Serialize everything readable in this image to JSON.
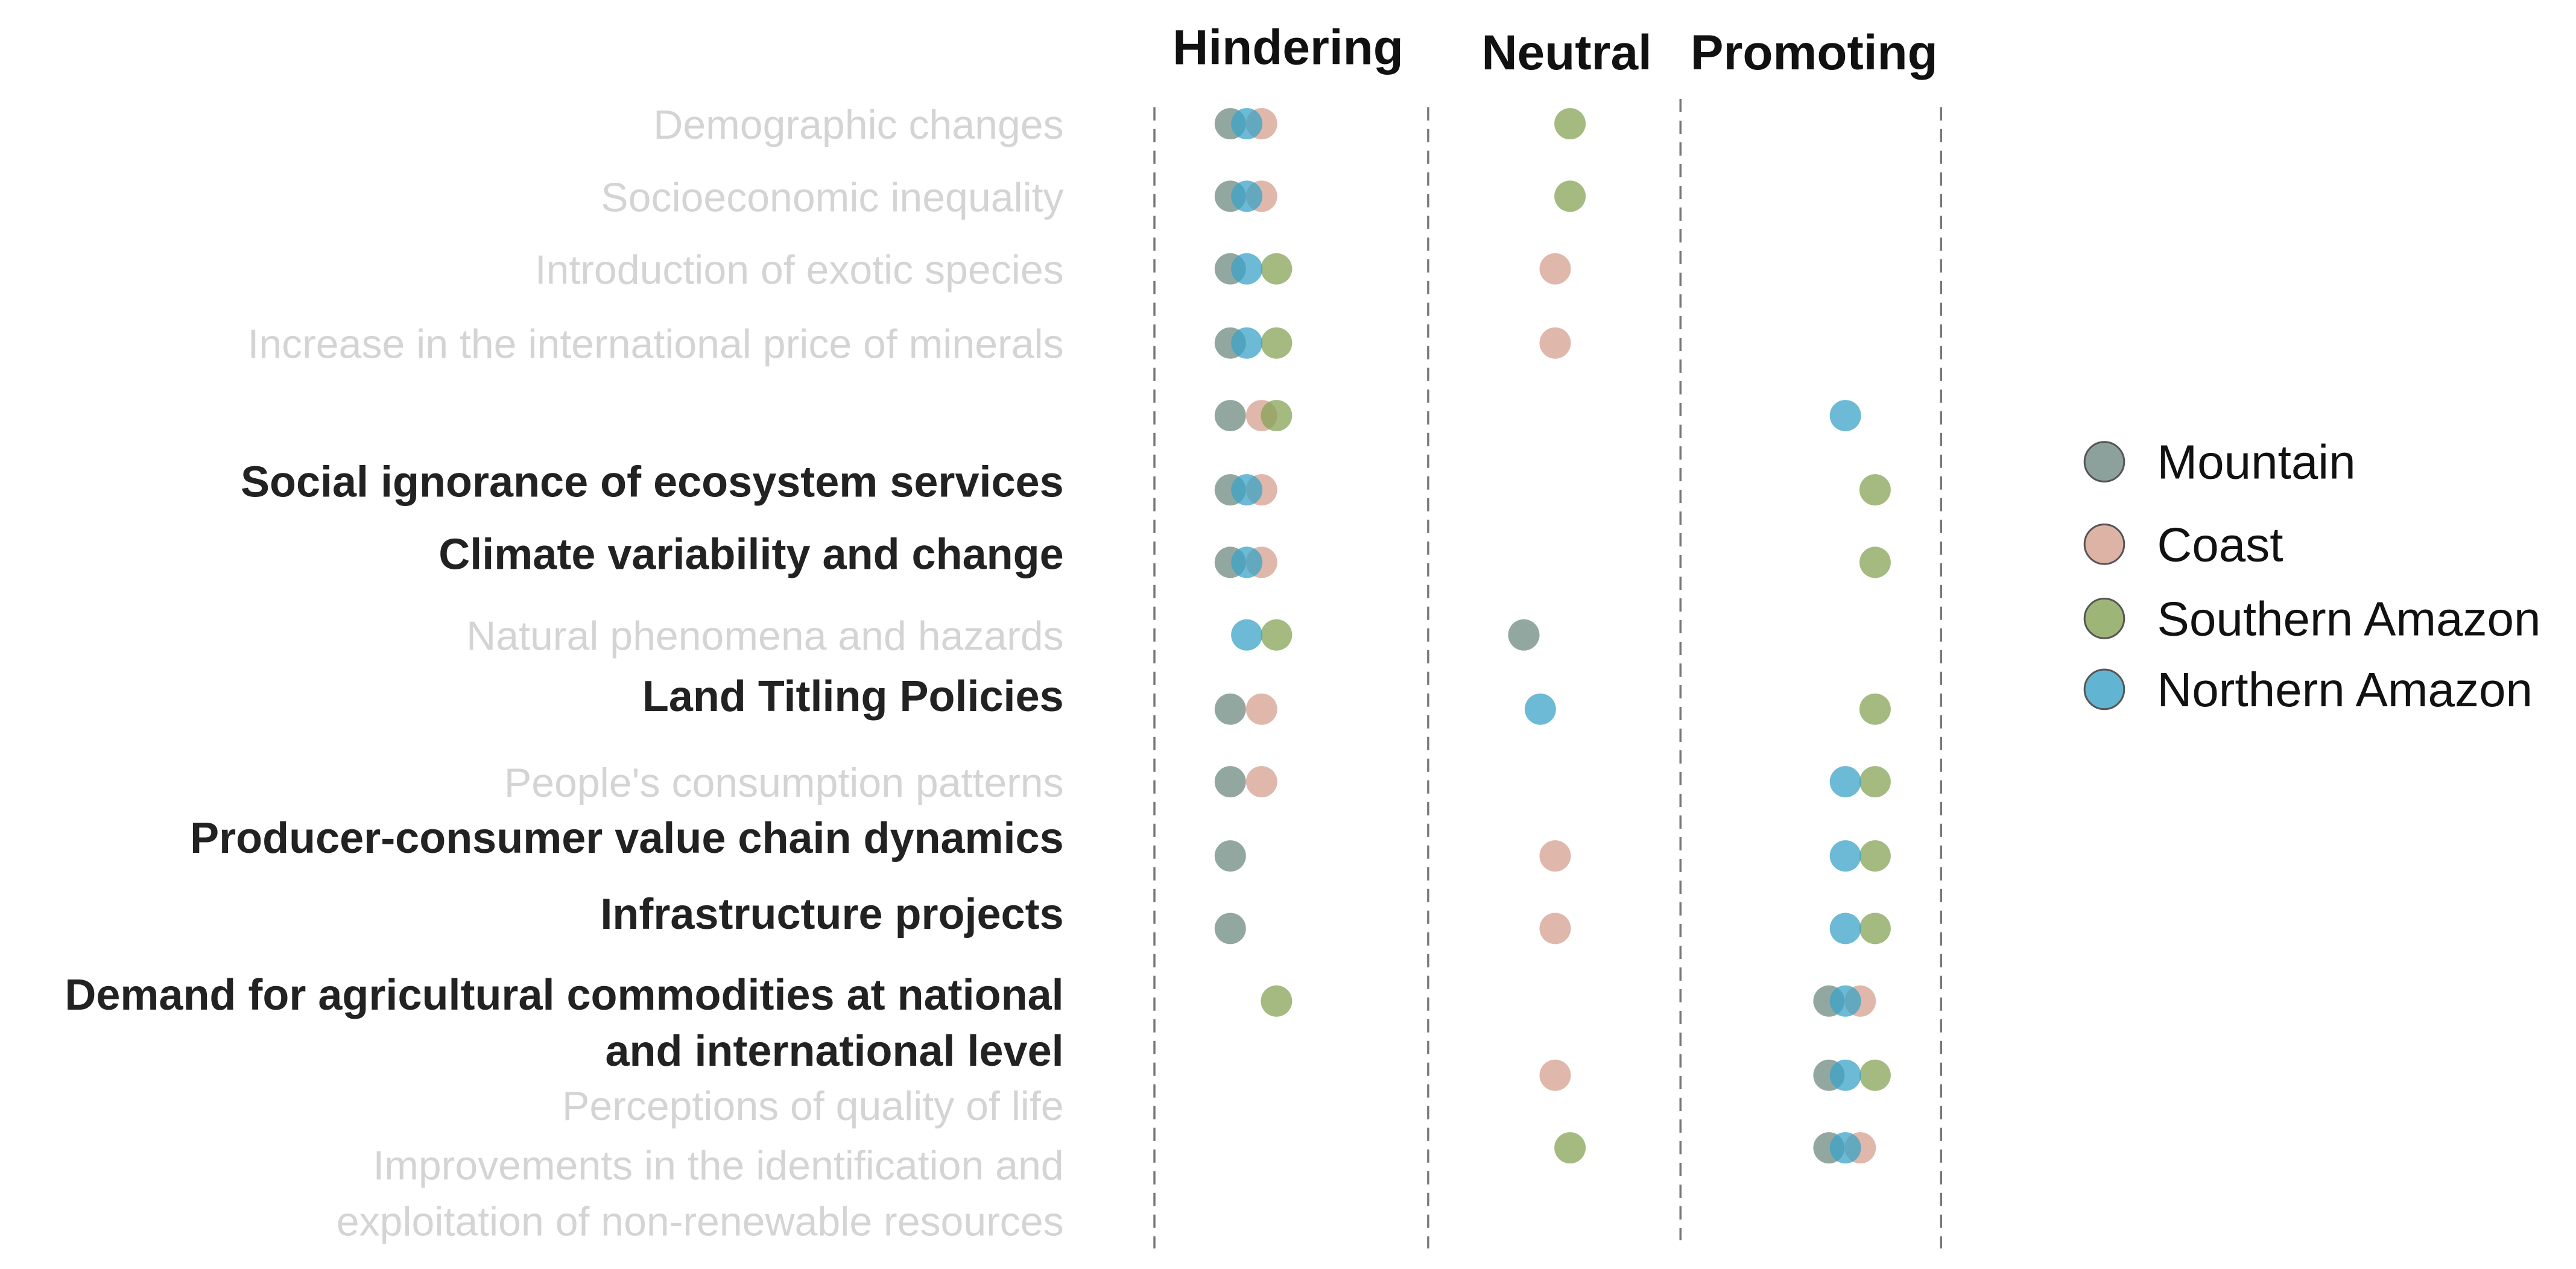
{
  "chart_data": {
    "type": "scatter",
    "columns": [
      "Hindering",
      "Neutral",
      "Promoting"
    ],
    "categories": [
      {
        "label": "Demographic changes",
        "emphasis": false
      },
      {
        "label": "Socioeconomic inequality",
        "emphasis": false
      },
      {
        "label": "Introduction of exotic species",
        "emphasis": false
      },
      {
        "label": "Increase in the international price of minerals",
        "emphasis": false
      },
      {
        "label": "",
        "emphasis": false
      },
      {
        "label": "Social ignorance of ecosystem services",
        "emphasis": true
      },
      {
        "label": "Climate variability and change",
        "emphasis": true
      },
      {
        "label": "Natural phenomena and hazards",
        "emphasis": false
      },
      {
        "label": "Land Titling Policies",
        "emphasis": true
      },
      {
        "label": "People's consumption patterns",
        "emphasis": false
      },
      {
        "label": "Producer-consumer value chain dynamics",
        "emphasis": true
      },
      {
        "label": "Infrastructure projects",
        "emphasis": true
      },
      {
        "label": "Demand for agricultural commodities at national and international level",
        "emphasis": true
      },
      {
        "label": "Perceptions of quality of life",
        "emphasis": false
      },
      {
        "label": "Improvements in the identification and exploitation of non-renewable resources",
        "emphasis": false
      }
    ],
    "series": [
      {
        "name": "Mountain",
        "color": "#6f8a82",
        "points": [
          {
            "row": 0,
            "column": "Hindering"
          },
          {
            "row": 1,
            "column": "Hindering"
          },
          {
            "row": 2,
            "column": "Hindering"
          },
          {
            "row": 3,
            "column": "Hindering"
          },
          {
            "row": 4,
            "column": "Hindering"
          },
          {
            "row": 5,
            "column": "Hindering"
          },
          {
            "row": 6,
            "column": "Hindering"
          },
          {
            "row": 7,
            "column": "Neutral"
          },
          {
            "row": 8,
            "column": "Hindering"
          },
          {
            "row": 9,
            "column": "Hindering"
          },
          {
            "row": 10,
            "column": "Hindering"
          },
          {
            "row": 11,
            "column": "Hindering"
          },
          {
            "row": 12,
            "column": "Promoting"
          },
          {
            "row": 13,
            "column": "Promoting"
          },
          {
            "row": 14,
            "column": "Promoting"
          }
        ]
      },
      {
        "name": "Coast",
        "color": "#d4a08f",
        "points": [
          {
            "row": 0,
            "column": "Hindering"
          },
          {
            "row": 1,
            "column": "Hindering"
          },
          {
            "row": 2,
            "column": "Neutral"
          },
          {
            "row": 3,
            "column": "Neutral"
          },
          {
            "row": 4,
            "column": "Hindering"
          },
          {
            "row": 5,
            "column": "Hindering"
          },
          {
            "row": 6,
            "column": "Hindering"
          },
          {
            "row": 8,
            "column": "Hindering"
          },
          {
            "row": 9,
            "column": "Hindering"
          },
          {
            "row": 10,
            "column": "Neutral"
          },
          {
            "row": 11,
            "column": "Neutral"
          },
          {
            "row": 12,
            "column": "Promoting"
          },
          {
            "row": 13,
            "column": "Neutral"
          },
          {
            "row": 14,
            "column": "Promoting"
          }
        ]
      },
      {
        "name": "Southern Amazon",
        "color": "#86a356",
        "points": [
          {
            "row": 0,
            "column": "Neutral"
          },
          {
            "row": 1,
            "column": "Neutral"
          },
          {
            "row": 2,
            "column": "Hindering"
          },
          {
            "row": 3,
            "column": "Hindering"
          },
          {
            "row": 4,
            "column": "Hindering"
          },
          {
            "row": 5,
            "column": "Promoting"
          },
          {
            "row": 6,
            "column": "Promoting"
          },
          {
            "row": 7,
            "column": "Hindering"
          },
          {
            "row": 8,
            "column": "Promoting"
          },
          {
            "row": 9,
            "column": "Promoting"
          },
          {
            "row": 10,
            "column": "Promoting"
          },
          {
            "row": 11,
            "column": "Promoting"
          },
          {
            "row": 12,
            "column": "Hindering"
          },
          {
            "row": 13,
            "column": "Promoting"
          },
          {
            "row": 14,
            "column": "Neutral"
          }
        ]
      },
      {
        "name": "Northern Amazon",
        "color": "#3ba3c7",
        "points": [
          {
            "row": 0,
            "column": "Hindering"
          },
          {
            "row": 1,
            "column": "Hindering"
          },
          {
            "row": 2,
            "column": "Hindering"
          },
          {
            "row": 3,
            "column": "Hindering"
          },
          {
            "row": 4,
            "column": "Promoting"
          },
          {
            "row": 5,
            "column": "Hindering"
          },
          {
            "row": 6,
            "column": "Hindering"
          },
          {
            "row": 7,
            "column": "Hindering"
          },
          {
            "row": 8,
            "column": "Neutral"
          },
          {
            "row": 9,
            "column": "Promoting"
          },
          {
            "row": 10,
            "column": "Promoting"
          },
          {
            "row": 11,
            "column": "Promoting"
          },
          {
            "row": 12,
            "column": "Promoting"
          },
          {
            "row": 13,
            "column": "Promoting"
          },
          {
            "row": 14,
            "column": "Promoting"
          }
        ]
      }
    ],
    "legend_position": "right",
    "grid": false
  },
  "colors": {
    "label_emphasis": "#222222",
    "label_muted": "#d4d4d4",
    "column_header": "#111111",
    "divider": "#777777"
  }
}
